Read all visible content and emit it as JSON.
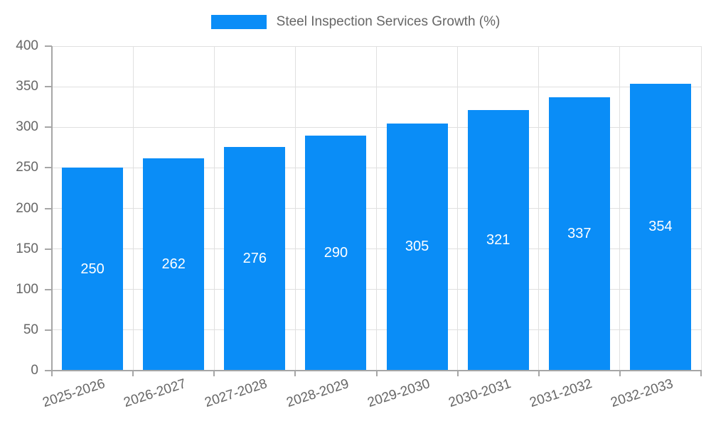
{
  "chart_data": {
    "type": "bar",
    "title": "",
    "legend_label": "Steel Inspection Services Growth (%)",
    "legend_position": "top",
    "categories": [
      "2025-2026",
      "2026-2027",
      "2027-2028",
      "2028-2029",
      "2029-2030",
      "2030-2031",
      "2031-2032",
      "2032-2033"
    ],
    "values": [
      250,
      262,
      276,
      290,
      305,
      321,
      337,
      354
    ],
    "xlabel": "",
    "ylabel": "",
    "ylim": [
      0,
      400
    ],
    "yticks": [
      0,
      50,
      100,
      150,
      200,
      250,
      300,
      350,
      400
    ],
    "grid": true,
    "x_label_rotation_deg": -18,
    "colors": {
      "bar": "#0a8df7",
      "value_label": "#ffffff",
      "axis_text": "#666666",
      "grid_line": "#e0e0e0",
      "axis_line": "#a6a6a6",
      "background": "#ffffff"
    }
  }
}
